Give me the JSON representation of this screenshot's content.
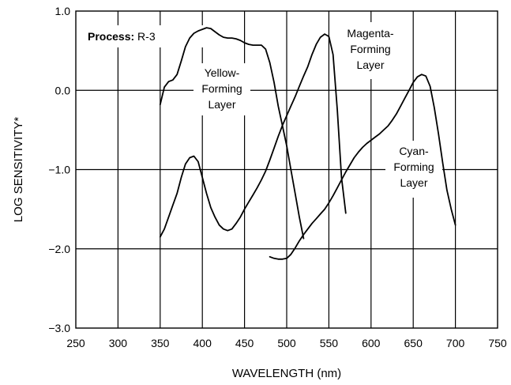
{
  "chart_data": {
    "type": "line",
    "xlabel": "WAVELENGTH (nm)",
    "ylabel": "LOG SENSITIVITY*",
    "xlim": [
      250,
      750
    ],
    "ylim": [
      -3.0,
      1.0
    ],
    "x_ticks": [
      "250",
      "300",
      "350",
      "400",
      "450",
      "500",
      "550",
      "600",
      "650",
      "700",
      "750"
    ],
    "y_ticks": [
      "1.0",
      "0.0",
      "−1.0",
      "−2.0",
      "−3.0"
    ],
    "grid": true,
    "process_label": "Process:",
    "process_value": "R-3",
    "series": [
      {
        "name": "Yellow-Forming Layer",
        "label_lines": [
          "Yellow-",
          "Forming",
          "Layer"
        ],
        "points": [
          [
            350,
            -0.18
          ],
          [
            355,
            0.04
          ],
          [
            360,
            0.11
          ],
          [
            365,
            0.13
          ],
          [
            370,
            0.2
          ],
          [
            375,
            0.37
          ],
          [
            380,
            0.55
          ],
          [
            385,
            0.66
          ],
          [
            390,
            0.72
          ],
          [
            395,
            0.75
          ],
          [
            400,
            0.77
          ],
          [
            405,
            0.79
          ],
          [
            410,
            0.78
          ],
          [
            415,
            0.74
          ],
          [
            420,
            0.7
          ],
          [
            425,
            0.67
          ],
          [
            430,
            0.66
          ],
          [
            435,
            0.66
          ],
          [
            440,
            0.65
          ],
          [
            445,
            0.63
          ],
          [
            450,
            0.6
          ],
          [
            455,
            0.58
          ],
          [
            460,
            0.57
          ],
          [
            465,
            0.57
          ],
          [
            470,
            0.57
          ],
          [
            475,
            0.52
          ],
          [
            480,
            0.35
          ],
          [
            485,
            0.1
          ],
          [
            490,
            -0.2
          ],
          [
            495,
            -0.45
          ],
          [
            500,
            -0.7
          ],
          [
            505,
            -1.0
          ],
          [
            510,
            -1.3
          ],
          [
            515,
            -1.6
          ],
          [
            520,
            -1.87
          ]
        ]
      },
      {
        "name": "Magenta-Forming Layer",
        "label_lines": [
          "Magenta-",
          "Forming",
          "Layer"
        ],
        "points": [
          [
            350,
            -1.85
          ],
          [
            355,
            -1.75
          ],
          [
            360,
            -1.6
          ],
          [
            365,
            -1.45
          ],
          [
            370,
            -1.3
          ],
          [
            375,
            -1.1
          ],
          [
            380,
            -0.93
          ],
          [
            385,
            -0.85
          ],
          [
            390,
            -0.83
          ],
          [
            395,
            -0.9
          ],
          [
            400,
            -1.1
          ],
          [
            405,
            -1.3
          ],
          [
            410,
            -1.48
          ],
          [
            415,
            -1.6
          ],
          [
            420,
            -1.7
          ],
          [
            425,
            -1.75
          ],
          [
            430,
            -1.77
          ],
          [
            435,
            -1.75
          ],
          [
            440,
            -1.68
          ],
          [
            445,
            -1.6
          ],
          [
            450,
            -1.5
          ],
          [
            455,
            -1.41
          ],
          [
            460,
            -1.32
          ],
          [
            465,
            -1.23
          ],
          [
            470,
            -1.13
          ],
          [
            475,
            -1.02
          ],
          [
            480,
            -0.88
          ],
          [
            485,
            -0.73
          ],
          [
            490,
            -0.58
          ],
          [
            495,
            -0.44
          ],
          [
            500,
            -0.32
          ],
          [
            505,
            -0.2
          ],
          [
            510,
            -0.08
          ],
          [
            515,
            0.05
          ],
          [
            520,
            0.18
          ],
          [
            525,
            0.3
          ],
          [
            530,
            0.45
          ],
          [
            535,
            0.58
          ],
          [
            540,
            0.67
          ],
          [
            545,
            0.71
          ],
          [
            550,
            0.68
          ],
          [
            555,
            0.45
          ],
          [
            560,
            -0.25
          ],
          [
            565,
            -1.1
          ],
          [
            570,
            -1.55
          ]
        ]
      },
      {
        "name": "Cyan-Forming Layer",
        "label_lines": [
          "Cyan-",
          "Forming",
          "Layer"
        ],
        "points": [
          [
            480,
            -2.1
          ],
          [
            485,
            -2.12
          ],
          [
            490,
            -2.13
          ],
          [
            495,
            -2.13
          ],
          [
            500,
            -2.12
          ],
          [
            505,
            -2.07
          ],
          [
            510,
            -1.99
          ],
          [
            515,
            -1.9
          ],
          [
            520,
            -1.82
          ],
          [
            525,
            -1.75
          ],
          [
            530,
            -1.68
          ],
          [
            535,
            -1.62
          ],
          [
            540,
            -1.56
          ],
          [
            545,
            -1.5
          ],
          [
            550,
            -1.42
          ],
          [
            555,
            -1.33
          ],
          [
            560,
            -1.23
          ],
          [
            565,
            -1.13
          ],
          [
            570,
            -1.03
          ],
          [
            575,
            -0.94
          ],
          [
            580,
            -0.85
          ],
          [
            585,
            -0.78
          ],
          [
            590,
            -0.72
          ],
          [
            595,
            -0.67
          ],
          [
            600,
            -0.63
          ],
          [
            605,
            -0.59
          ],
          [
            610,
            -0.55
          ],
          [
            615,
            -0.5
          ],
          [
            620,
            -0.45
          ],
          [
            625,
            -0.38
          ],
          [
            630,
            -0.3
          ],
          [
            635,
            -0.2
          ],
          [
            640,
            -0.1
          ],
          [
            645,
            0.0
          ],
          [
            650,
            0.1
          ],
          [
            655,
            0.17
          ],
          [
            660,
            0.2
          ],
          [
            665,
            0.18
          ],
          [
            670,
            0.05
          ],
          [
            675,
            -0.22
          ],
          [
            680,
            -0.55
          ],
          [
            685,
            -0.92
          ],
          [
            690,
            -1.26
          ],
          [
            695,
            -1.5
          ],
          [
            700,
            -1.7
          ]
        ]
      }
    ]
  }
}
